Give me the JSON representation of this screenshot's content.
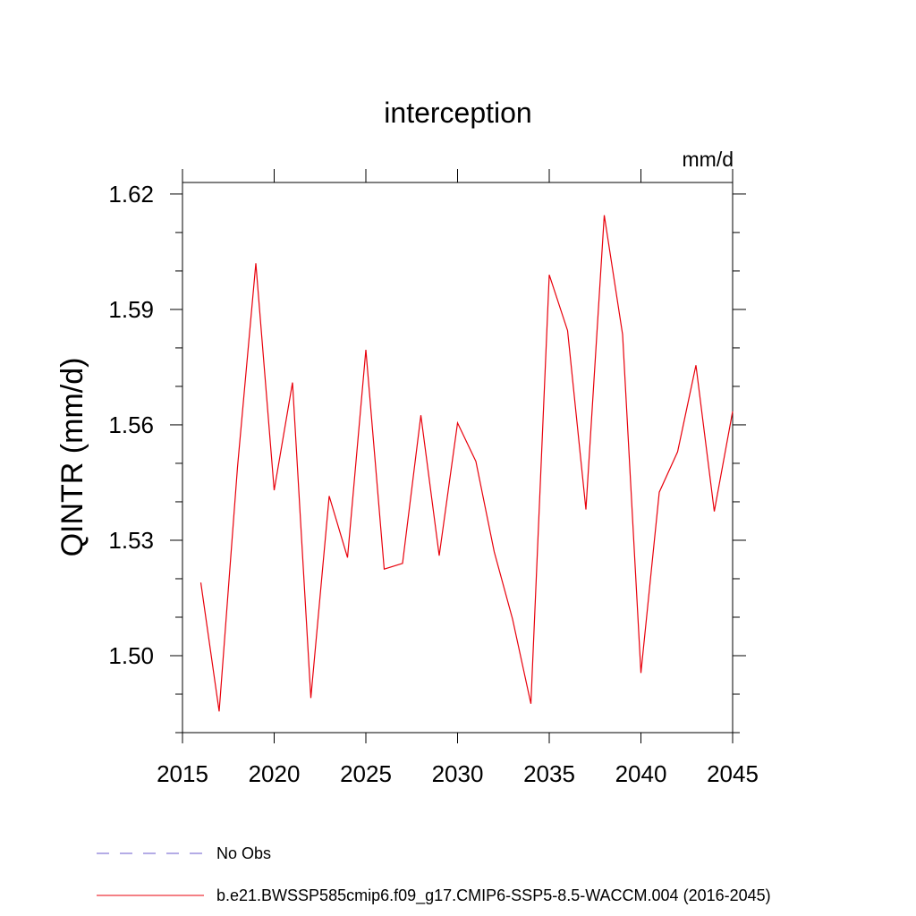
{
  "chart_data": {
    "type": "line",
    "title": "interception",
    "units_label": "mm/d",
    "ylabel": "QINTR  (mm/d)",
    "xlabel": "",
    "xlim": [
      2015,
      2045
    ],
    "ylim": [
      1.48,
      1.623
    ],
    "x_ticks": [
      2015,
      2020,
      2025,
      2030,
      2035,
      2040,
      2045
    ],
    "x_tick_labels": [
      "2015",
      "2020",
      "2025",
      "2030",
      "2035",
      "2040",
      "2045"
    ],
    "y_ticks": [
      1.5,
      1.53,
      1.56,
      1.59,
      1.62
    ],
    "y_tick_labels": [
      "1.50",
      "1.53",
      "1.56",
      "1.59",
      "1.62"
    ],
    "y_minor_step": 0.01,
    "grid": false,
    "legend_position": "bottom",
    "series": [
      {
        "name": "No Obs",
        "color": "#6a5acd",
        "dash": "dashed",
        "x": [],
        "values": []
      },
      {
        "name": "b.e21.BWSSP585cmip6.f09_g17.CMIP6-SSP5-8.5-WACCM.004 (2016-2045)",
        "color": "#e8000b",
        "dash": "solid",
        "x": [
          2016,
          2017,
          2018,
          2019,
          2020,
          2021,
          2022,
          2023,
          2024,
          2025,
          2026,
          2027,
          2028,
          2029,
          2030,
          2031,
          2032,
          2033,
          2034,
          2035,
          2036,
          2037,
          2038,
          2039,
          2040,
          2041,
          2042,
          2043,
          2044,
          2045
        ],
        "values": [
          1.519,
          1.4855,
          1.549,
          1.602,
          1.543,
          1.571,
          1.489,
          1.5415,
          1.5255,
          1.5795,
          1.5225,
          1.524,
          1.5625,
          1.526,
          1.5605,
          1.5505,
          1.527,
          1.5095,
          1.4875,
          1.599,
          1.5845,
          1.538,
          1.6145,
          1.5835,
          1.4955,
          1.5425,
          1.553,
          1.5755,
          1.5375,
          1.5635
        ]
      }
    ]
  }
}
